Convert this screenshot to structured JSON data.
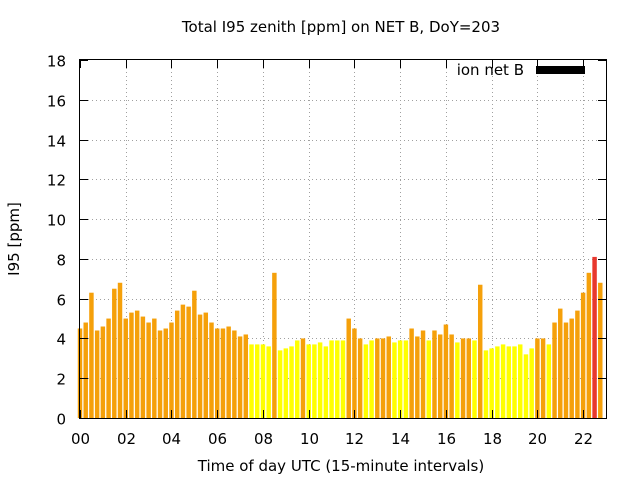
{
  "chart_data": {
    "type": "bar",
    "title": "Total I95 zenith [ppm] on NET B, DoY=203",
    "xlabel": "Time of day UTC (15-minute intervals)",
    "ylabel": "I95 [ppm]",
    "xlim": [
      0,
      23
    ],
    "ylim": [
      0,
      18
    ],
    "x_ticks": [
      "00",
      "02",
      "04",
      "06",
      "08",
      "10",
      "12",
      "14",
      "16",
      "18",
      "20",
      "22"
    ],
    "x_tick_hours": [
      0,
      2,
      4,
      6,
      8,
      10,
      12,
      14,
      16,
      18,
      20,
      22
    ],
    "y_ticks": [
      0,
      2,
      4,
      6,
      8,
      10,
      12,
      14,
      16,
      18
    ],
    "interval_hours": 0.25,
    "grid": true,
    "legend": {
      "label": "ion net B",
      "color": "#000000",
      "placement": "top-right"
    },
    "colors": {
      "low": "#ffff00",
      "moderate": "#f5a00a",
      "high": "#e8382e"
    },
    "values": [
      4.5,
      4.8,
      6.3,
      4.4,
      4.6,
      5.0,
      6.5,
      6.8,
      5.0,
      5.3,
      5.4,
      5.1,
      4.8,
      5.0,
      4.4,
      4.5,
      4.8,
      5.4,
      5.7,
      5.6,
      6.4,
      5.2,
      5.3,
      4.8,
      4.5,
      4.5,
      4.6,
      4.4,
      4.1,
      4.2,
      3.7,
      3.7,
      3.7,
      3.6,
      7.3,
      3.4,
      3.5,
      3.6,
      3.9,
      4.0,
      3.7,
      3.7,
      3.8,
      3.6,
      3.9,
      3.9,
      3.9,
      5.0,
      4.5,
      4.0,
      3.7,
      3.9,
      4.0,
      4.0,
      4.1,
      3.8,
      3.9,
      3.9,
      4.5,
      4.1,
      4.4,
      3.9,
      4.4,
      4.2,
      4.7,
      4.2,
      3.8,
      4.0,
      4.0,
      3.9,
      6.7,
      3.4,
      3.5,
      3.6,
      3.7,
      3.6,
      3.6,
      3.7,
      3.2,
      3.5,
      4.0,
      4.0,
      3.7,
      4.8,
      5.5,
      4.8,
      5.0,
      5.4,
      6.3,
      7.3,
      8.1,
      6.8
    ],
    "levels": [
      "m",
      "m",
      "m",
      "m",
      "m",
      "m",
      "m",
      "m",
      "m",
      "m",
      "m",
      "m",
      "m",
      "m",
      "m",
      "m",
      "m",
      "m",
      "m",
      "m",
      "m",
      "m",
      "m",
      "m",
      "m",
      "m",
      "m",
      "m",
      "m",
      "m",
      "l",
      "l",
      "l",
      "l",
      "m",
      "l",
      "l",
      "l",
      "l",
      "m",
      "l",
      "l",
      "l",
      "l",
      "l",
      "l",
      "l",
      "m",
      "m",
      "m",
      "l",
      "l",
      "m",
      "m",
      "m",
      "l",
      "l",
      "l",
      "m",
      "m",
      "m",
      "l",
      "m",
      "m",
      "m",
      "m",
      "l",
      "m",
      "m",
      "l",
      "m",
      "l",
      "l",
      "l",
      "l",
      "l",
      "l",
      "l",
      "l",
      "l",
      "m",
      "m",
      "l",
      "m",
      "m",
      "m",
      "m",
      "m",
      "m",
      "m",
      "h",
      "m"
    ]
  }
}
